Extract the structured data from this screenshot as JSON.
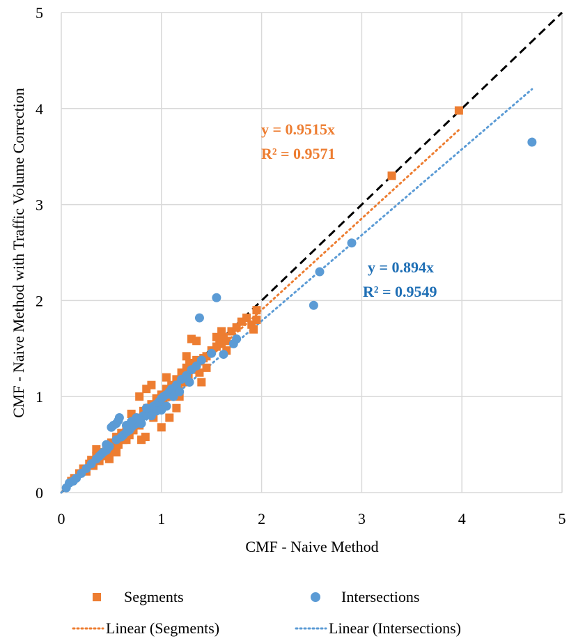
{
  "chart_data": {
    "type": "scatter",
    "title": "",
    "xlabel": "CMF - Naive Method",
    "ylabel": "CMF - Naive Method with Traffic Volume Correction",
    "xlim": [
      0,
      5
    ],
    "ylim": [
      0,
      5
    ],
    "xticks": [
      "0",
      "1",
      "2",
      "3",
      "4",
      "5"
    ],
    "yticks": [
      "0",
      "1",
      "2",
      "3",
      "4",
      "5"
    ],
    "grid": true,
    "legend_position": "bottom",
    "reference_line": {
      "type": "y=x",
      "style": "dashed",
      "color": "#000000"
    },
    "series": [
      {
        "name": "Segments",
        "marker": "square",
        "color": "#ED7D31",
        "points": [
          [
            0.1,
            0.12
          ],
          [
            0.13,
            0.15
          ],
          [
            0.18,
            0.2
          ],
          [
            0.22,
            0.25
          ],
          [
            0.25,
            0.22
          ],
          [
            0.28,
            0.3
          ],
          [
            0.3,
            0.34
          ],
          [
            0.32,
            0.28
          ],
          [
            0.35,
            0.38
          ],
          [
            0.38,
            0.33
          ],
          [
            0.4,
            0.42
          ],
          [
            0.42,
            0.38
          ],
          [
            0.45,
            0.47
          ],
          [
            0.47,
            0.4
          ],
          [
            0.5,
            0.52
          ],
          [
            0.52,
            0.45
          ],
          [
            0.55,
            0.58
          ],
          [
            0.57,
            0.5
          ],
          [
            0.6,
            0.62
          ],
          [
            0.62,
            0.55
          ],
          [
            0.65,
            0.68
          ],
          [
            0.68,
            0.6
          ],
          [
            0.7,
            0.72
          ],
          [
            0.72,
            0.65
          ],
          [
            0.75,
            0.78
          ],
          [
            0.78,
            0.7
          ],
          [
            0.8,
            0.55
          ],
          [
            0.82,
            0.85
          ],
          [
            0.84,
            0.58
          ],
          [
            0.86,
            0.88
          ],
          [
            0.88,
            0.82
          ],
          [
            0.9,
            0.92
          ],
          [
            0.92,
            0.85
          ],
          [
            0.95,
            0.98
          ],
          [
            0.97,
            0.9
          ],
          [
            1.0,
            1.02
          ],
          [
            1.02,
            0.95
          ],
          [
            1.05,
            1.08
          ],
          [
            1.07,
            1.0
          ],
          [
            1.08,
            0.78
          ],
          [
            1.1,
            1.12
          ],
          [
            1.12,
            1.05
          ],
          [
            1.15,
            1.18
          ],
          [
            1.17,
            1.1
          ],
          [
            1.2,
            1.25
          ],
          [
            1.22,
            1.15
          ],
          [
            1.25,
            1.3
          ],
          [
            1.27,
            1.2
          ],
          [
            1.3,
            1.35
          ],
          [
            1.32,
            1.28
          ],
          [
            1.35,
            1.38
          ],
          [
            1.38,
            1.25
          ],
          [
            1.4,
            1.15
          ],
          [
            1.42,
            1.4
          ],
          [
            1.45,
            1.42
          ],
          [
            1.5,
            1.48
          ],
          [
            1.55,
            1.52
          ],
          [
            1.58,
            1.6
          ],
          [
            1.6,
            1.55
          ],
          [
            1.62,
            1.62
          ],
          [
            1.65,
            1.58
          ],
          [
            1.7,
            1.68
          ],
          [
            1.75,
            1.72
          ],
          [
            1.8,
            1.78
          ],
          [
            1.85,
            1.82
          ],
          [
            1.9,
            1.75
          ],
          [
            1.92,
            1.7
          ],
          [
            1.95,
            1.9
          ],
          [
            0.85,
            1.08
          ],
          [
            0.9,
            1.12
          ],
          [
            1.0,
            0.68
          ],
          [
            1.15,
            0.88
          ],
          [
            1.3,
            1.6
          ],
          [
            1.6,
            1.68
          ],
          [
            1.95,
            1.8
          ],
          [
            1.05,
            1.2
          ],
          [
            0.65,
            0.55
          ],
          [
            0.78,
            1.0
          ],
          [
            1.25,
            1.42
          ],
          [
            1.35,
            1.58
          ],
          [
            3.3,
            3.3
          ],
          [
            3.97,
            3.98
          ],
          [
            0.55,
            0.42
          ],
          [
            0.35,
            0.45
          ],
          [
            0.48,
            0.35
          ],
          [
            0.7,
            0.82
          ],
          [
            0.92,
            0.78
          ],
          [
            1.18,
            1.0
          ],
          [
            1.28,
            1.35
          ],
          [
            1.45,
            1.3
          ],
          [
            1.55,
            1.62
          ],
          [
            1.65,
            1.48
          ]
        ]
      },
      {
        "name": "Intersections",
        "marker": "circle",
        "color": "#5B9BD5",
        "points": [
          [
            0.05,
            0.05
          ],
          [
            0.08,
            0.1
          ],
          [
            0.12,
            0.12
          ],
          [
            0.15,
            0.15
          ],
          [
            0.2,
            0.2
          ],
          [
            0.25,
            0.25
          ],
          [
            0.3,
            0.3
          ],
          [
            0.35,
            0.35
          ],
          [
            0.38,
            0.38
          ],
          [
            0.4,
            0.4
          ],
          [
            0.42,
            0.42
          ],
          [
            0.45,
            0.44
          ],
          [
            0.48,
            0.48
          ],
          [
            0.5,
            0.68
          ],
          [
            0.52,
            0.7
          ],
          [
            0.55,
            0.72
          ],
          [
            0.57,
            0.75
          ],
          [
            0.58,
            0.78
          ],
          [
            0.6,
            0.58
          ],
          [
            0.62,
            0.6
          ],
          [
            0.65,
            0.63
          ],
          [
            0.68,
            0.65
          ],
          [
            0.7,
            0.68
          ],
          [
            0.72,
            0.7
          ],
          [
            0.75,
            0.72
          ],
          [
            0.78,
            0.75
          ],
          [
            0.8,
            0.78
          ],
          [
            0.82,
            0.8
          ],
          [
            0.85,
            0.82
          ],
          [
            0.88,
            0.85
          ],
          [
            0.9,
            0.88
          ],
          [
            0.92,
            0.9
          ],
          [
            0.95,
            0.92
          ],
          [
            0.98,
            0.95
          ],
          [
            1.0,
            0.98
          ],
          [
            1.02,
            1.0
          ],
          [
            1.05,
            1.02
          ],
          [
            1.08,
            1.05
          ],
          [
            1.1,
            1.08
          ],
          [
            1.15,
            1.12
          ],
          [
            1.2,
            1.18
          ],
          [
            1.25,
            1.22
          ],
          [
            1.3,
            1.28
          ],
          [
            1.35,
            1.32
          ],
          [
            1.4,
            1.38
          ],
          [
            1.5,
            1.45
          ],
          [
            1.55,
            2.03
          ],
          [
            1.38,
            1.82
          ],
          [
            1.62,
            1.44
          ],
          [
            1.72,
            1.55
          ],
          [
            1.75,
            1.6
          ],
          [
            2.52,
            1.95
          ],
          [
            2.58,
            2.3
          ],
          [
            2.9,
            2.6
          ],
          [
            4.7,
            3.65
          ],
          [
            0.65,
            0.7
          ],
          [
            0.75,
            0.78
          ],
          [
            0.85,
            0.88
          ],
          [
            0.95,
            0.85
          ],
          [
            1.05,
            0.9
          ],
          [
            1.12,
            1.0
          ],
          [
            1.18,
            1.05
          ],
          [
            1.28,
            1.15
          ],
          [
            0.45,
            0.5
          ],
          [
            0.55,
            0.55
          ],
          [
            0.7,
            0.74
          ],
          [
            0.8,
            0.72
          ],
          [
            0.9,
            0.8
          ],
          [
            1.0,
            0.86
          ]
        ]
      }
    ],
    "trendlines": [
      {
        "name": "Linear (Segments)",
        "series": "Segments",
        "slope": 0.9515,
        "x_range": [
          0,
          3.97
        ],
        "style": "dotted",
        "color": "#ED7D31",
        "equation": "y = 0.9515x",
        "r_squared": "R² = 0.9571"
      },
      {
        "name": "Linear (Intersections)",
        "series": "Intersections",
        "slope": 0.894,
        "x_range": [
          0,
          4.7
        ],
        "style": "dotted",
        "color": "#5B9BD5",
        "equation": "y = 0.894x",
        "r_squared": "R² = 0.9549"
      }
    ],
    "annotation_colors": {
      "segments": "#ED7D31",
      "intersections": "#1F6FB5"
    }
  }
}
